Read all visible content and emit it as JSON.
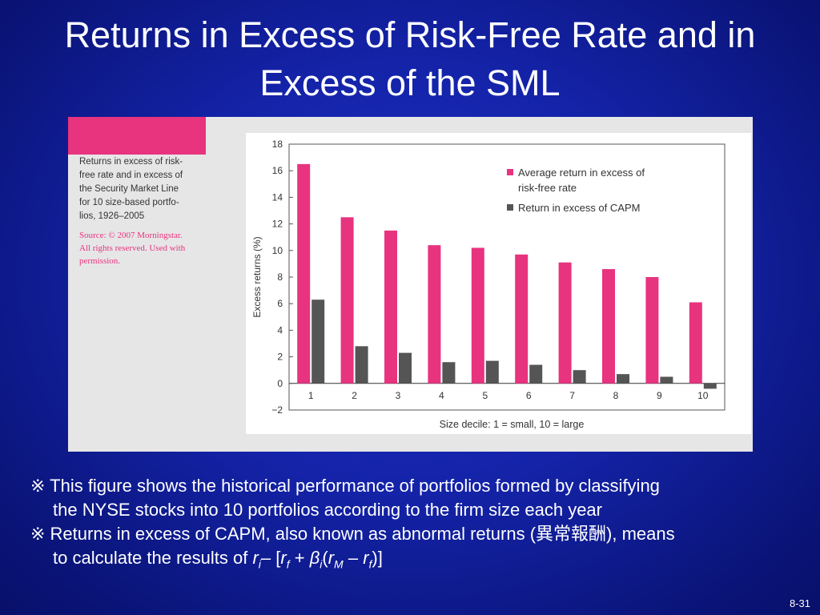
{
  "title": {
    "line1": "Returns in Excess of Risk-Free Rate and in",
    "line2": "Excess of the SML"
  },
  "caption": {
    "lines": [
      "Returns in excess of risk-",
      "free rate and in excess of",
      "the Security Market Line",
      "for 10 size-based portfo-",
      "lios, 1926–2005"
    ]
  },
  "source": {
    "lines": [
      "Source: © 2007 Morningstar.",
      "All rights reserved. Used with",
      "permission."
    ]
  },
  "colors": {
    "pink": "#e8337f",
    "dark": "#555555"
  },
  "chart_data": {
    "type": "bar",
    "categories": [
      "1",
      "2",
      "3",
      "4",
      "5",
      "6",
      "7",
      "8",
      "9",
      "10"
    ],
    "series": [
      {
        "name": "Average return in excess of risk-free rate",
        "color": "#e8337f",
        "values": [
          16.5,
          12.5,
          11.5,
          10.4,
          10.2,
          9.7,
          9.1,
          8.6,
          8.0,
          6.1
        ]
      },
      {
        "name": "Return in excess of CAPM",
        "color": "#555555",
        "values": [
          6.3,
          2.8,
          2.3,
          1.6,
          1.7,
          1.4,
          1.0,
          0.7,
          0.5,
          -0.4
        ]
      }
    ],
    "legend_lines": [
      [
        "Average return in excess of",
        "risk-free rate"
      ],
      [
        "Return in excess of CAPM"
      ]
    ],
    "ylabel": "Excess returns (%)",
    "xlabel": "Size decile: 1 = small, 10 = large",
    "ylim": [
      -2,
      18
    ],
    "yticks": [
      "18",
      "16",
      "14",
      "12",
      "10",
      "8",
      "6",
      "4",
      "2",
      "0",
      "−2"
    ],
    "ytick_values": [
      18,
      16,
      14,
      12,
      10,
      8,
      6,
      4,
      2,
      0,
      -2
    ],
    "legend_position": "top-right",
    "grid": false
  },
  "notes": {
    "note1_line1": "※ This figure shows the historical performance of portfolios formed by classifying",
    "note1_line2": "the NYSE stocks into 10 portfolios according to the firm size each year",
    "note2_line1_pre": "※ Returns in excess of CAPM, also known as abnormal returns (",
    "note2_kanji": "異常報酬",
    "note2_line1_post": "), means",
    "note2_line2_pre": "to calculate the results of ",
    "formula": {
      "r": "r",
      "i": "i",
      "minus1": "– [",
      "f": "f",
      "plus": " + ",
      "beta": "β",
      "paren": "(",
      "M": "M",
      "minus2": " – ",
      "close": ")]"
    }
  },
  "page_number": "8-31"
}
